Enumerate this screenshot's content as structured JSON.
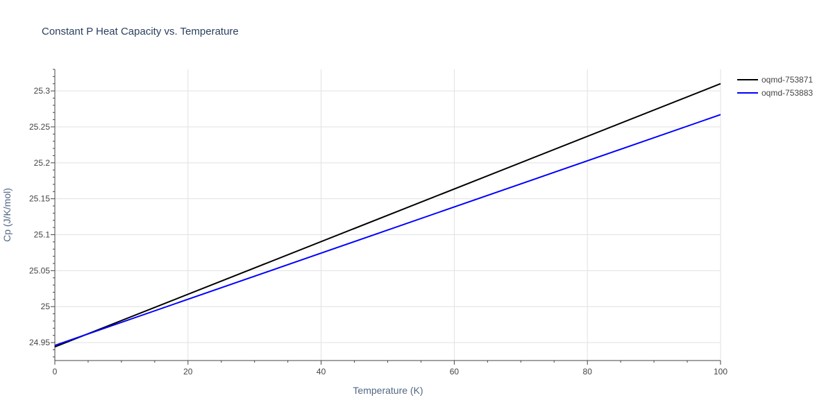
{
  "chart_data": {
    "type": "line",
    "title": "Constant P Heat Capacity vs. Temperature",
    "xlabel": "Temperature (K)",
    "ylabel": "Cp (J/K/mol)",
    "xlim": [
      0,
      100
    ],
    "ylim": [
      24.925,
      25.33
    ],
    "x_ticks": [
      0,
      20,
      40,
      60,
      80,
      100
    ],
    "x_tick_labels": [
      "0",
      "20",
      "40",
      "60",
      "80",
      "100"
    ],
    "y_ticks": [
      24.95,
      25.0,
      25.05,
      25.1,
      25.15,
      25.2,
      25.25,
      25.3
    ],
    "y_tick_labels": [
      "24.95",
      "25",
      "25.05",
      "25.1",
      "25.15",
      "25.2",
      "25.25",
      "25.3"
    ],
    "grid": true,
    "legend_position": "top-right",
    "series": [
      {
        "name": "oqmd-753871",
        "color": "#000000",
        "x": [
          0,
          100
        ],
        "y": [
          24.944,
          25.31
        ]
      },
      {
        "name": "oqmd-753883",
        "color": "#0000ff",
        "x": [
          0,
          100
        ],
        "y": [
          24.946,
          25.267
        ]
      }
    ]
  }
}
